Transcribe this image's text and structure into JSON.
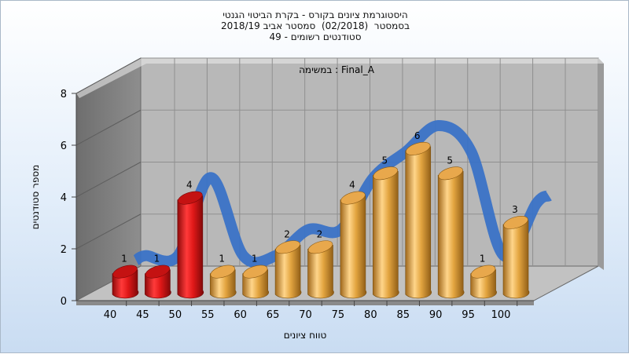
{
  "title_lines": [
    "היסטוגרמת ציונים בקורס - בקרת הביטוי הגנטי",
    "בסמסטר  (02/2018)  סמסטר אביב 2018/19",
    "סטודנטים רשומים - 49"
  ],
  "chart_data": {
    "type": "bar",
    "title": "היסטוגרמת ציונים בקורס - בקרת הביטוי הגנטי",
    "subtitle_lines": [
      "בסמסטר  (02/2018)  סמסטר אביב 2018/19",
      "סטודנטים רשומים - 49"
    ],
    "annotation": "במשימה : Final_A",
    "xlabel": "טווח ציונים",
    "ylabel": "מספר סטודנטים",
    "categories": [
      "40",
      "45",
      "50",
      "55",
      "60",
      "65",
      "70",
      "75",
      "80",
      "85",
      "90",
      "95",
      "100"
    ],
    "values": [
      1,
      1,
      4,
      1,
      1,
      2,
      2,
      4,
      5,
      6,
      5,
      1,
      3
    ],
    "bar_colors": [
      "#e01818",
      "#e01818",
      "#e01818",
      "#e3a540",
      "#e3a540",
      "#e3a540",
      "#e3a540",
      "#e3a540",
      "#e3a540",
      "#e3a540",
      "#e3a540",
      "#e3a540",
      "#e3a540"
    ],
    "yticks": [
      0,
      2,
      4,
      6,
      8
    ],
    "ylim": [
      0,
      8
    ],
    "curve_color": "#3a72c6",
    "grid": true
  }
}
